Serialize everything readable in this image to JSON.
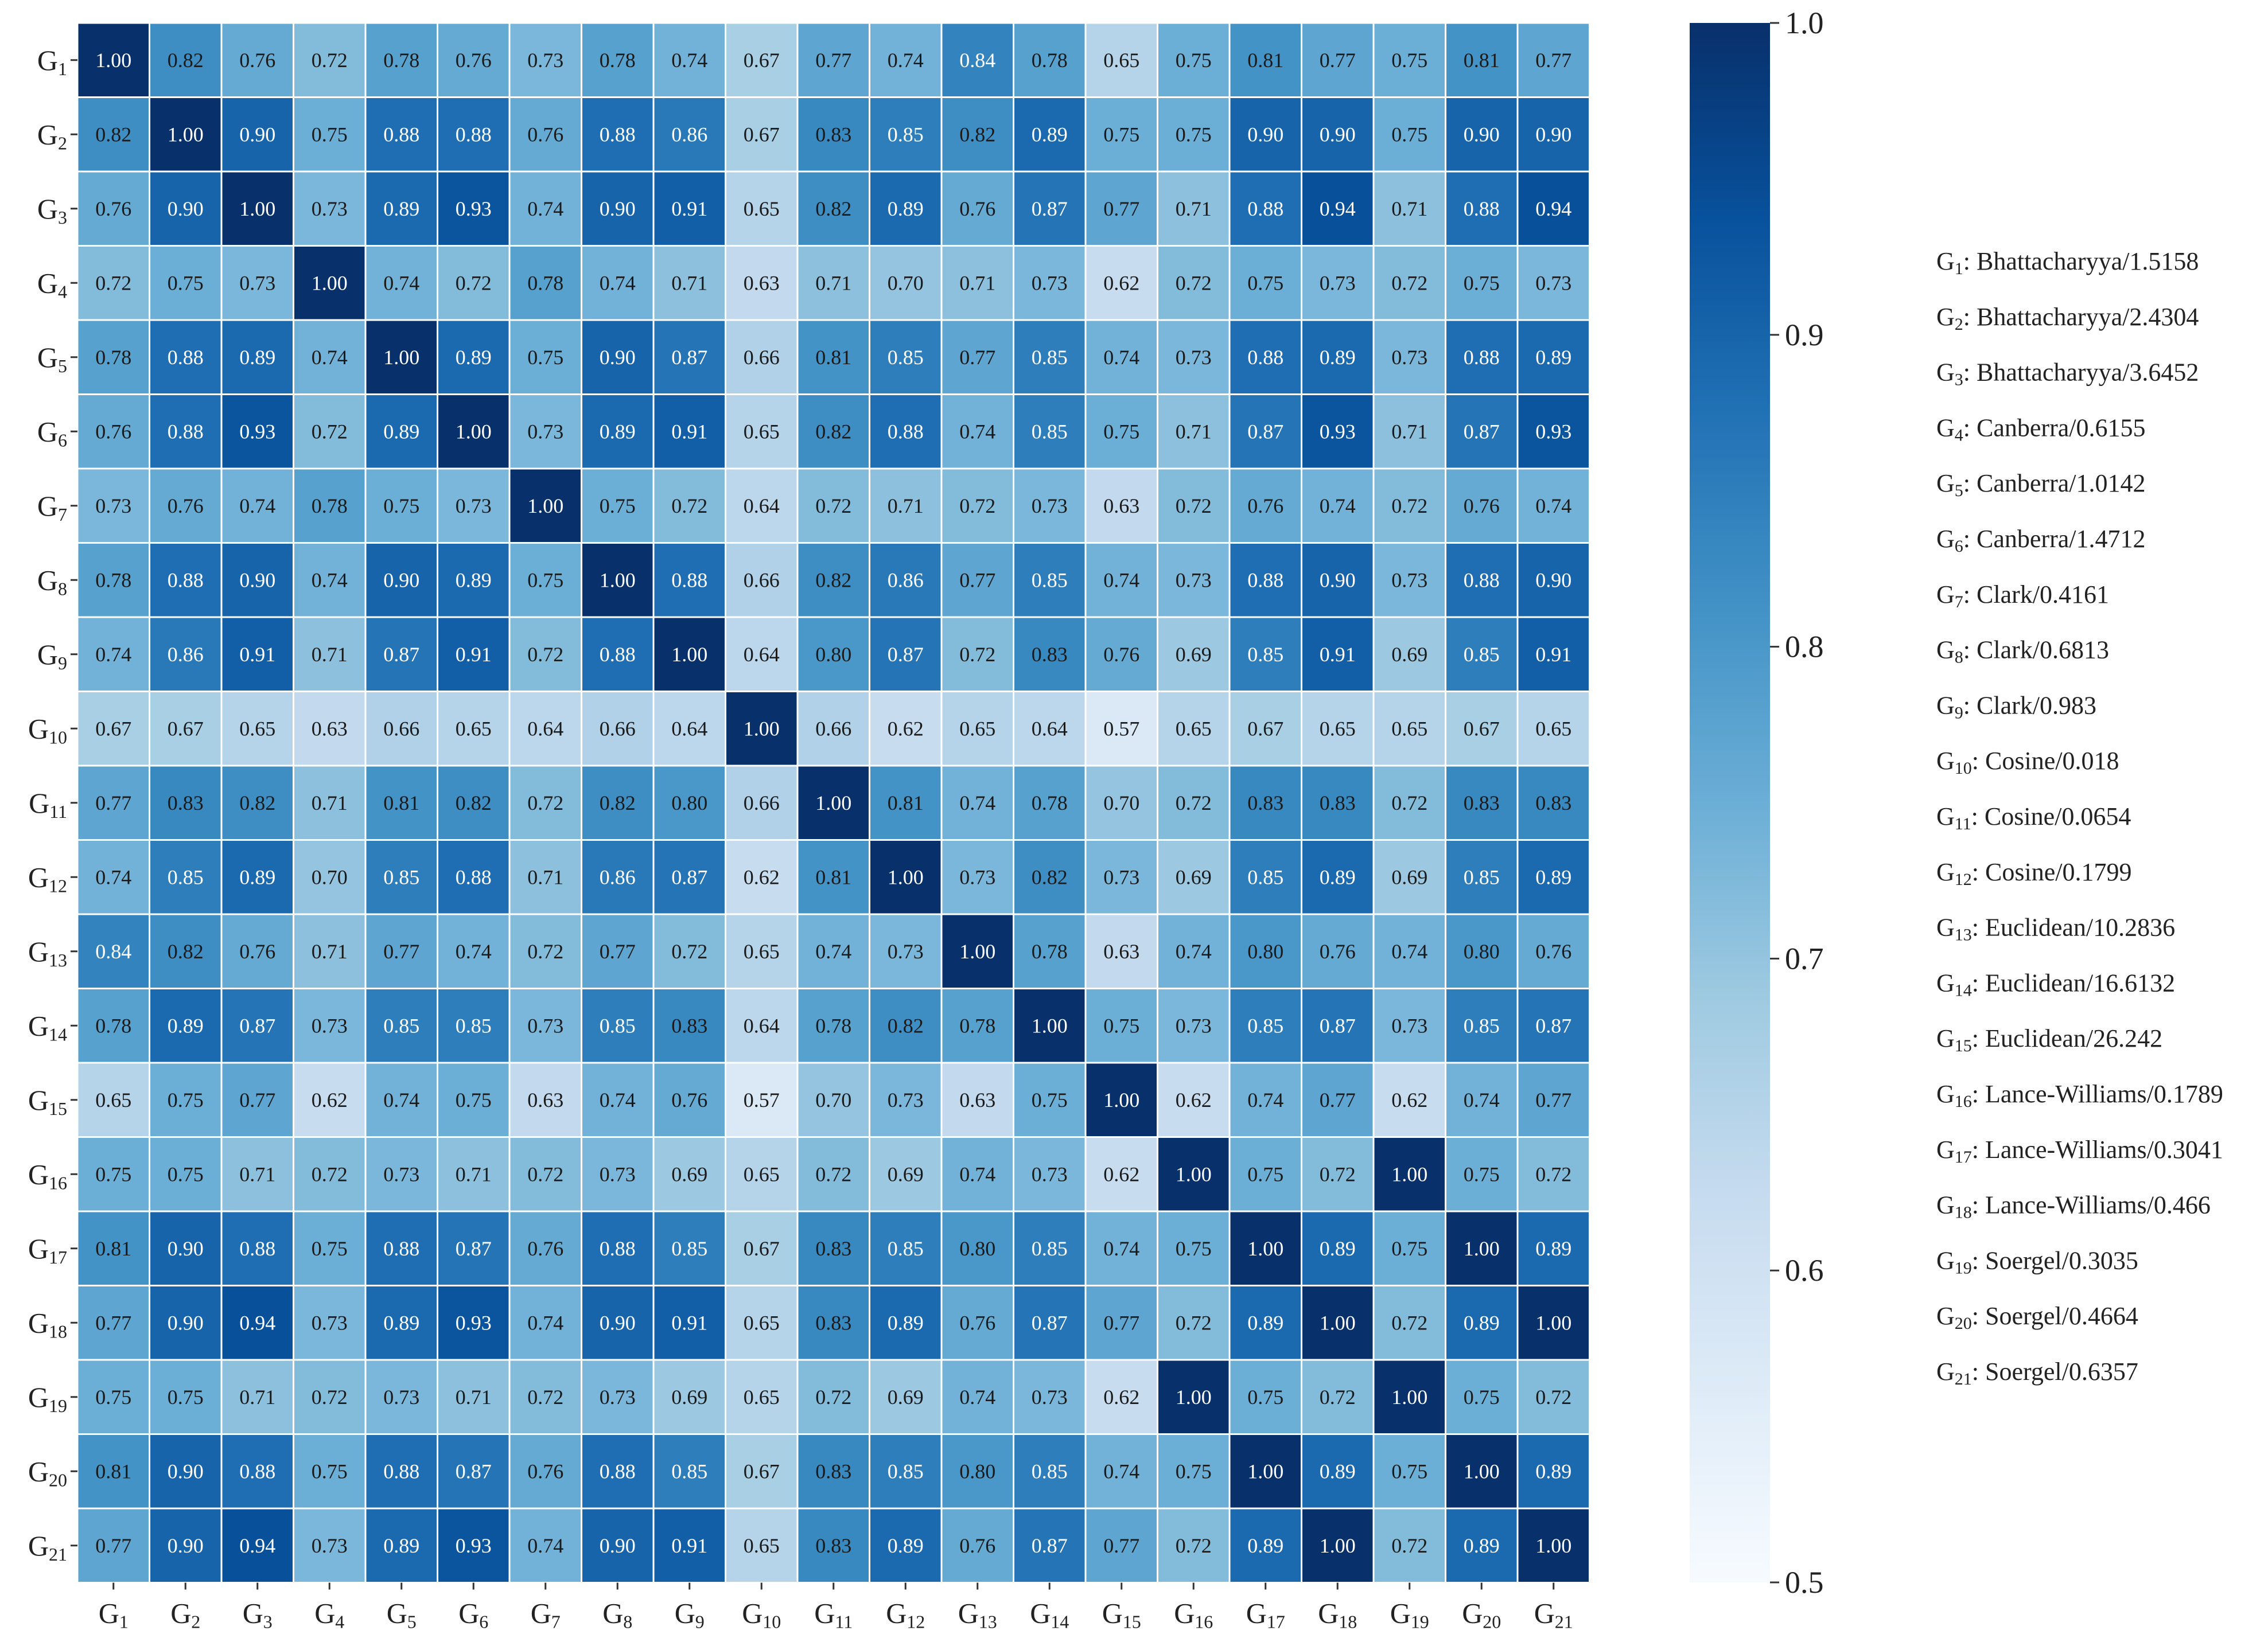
{
  "chart_data": {
    "type": "heatmap",
    "title": "",
    "xlabel": "",
    "ylabel": "",
    "labels": [
      "G1",
      "G2",
      "G3",
      "G4",
      "G5",
      "G6",
      "G7",
      "G8",
      "G9",
      "G10",
      "G11",
      "G12",
      "G13",
      "G14",
      "G15",
      "G16",
      "G17",
      "G18",
      "G19",
      "G20",
      "G21"
    ],
    "matrix": [
      [
        1.0,
        0.82,
        0.76,
        0.72,
        0.78,
        0.76,
        0.73,
        0.78,
        0.74,
        0.67,
        0.77,
        0.74,
        0.84,
        0.78,
        0.65,
        0.75,
        0.81,
        0.77,
        0.75,
        0.81,
        0.77
      ],
      [
        0.82,
        1.0,
        0.9,
        0.75,
        0.88,
        0.88,
        0.76,
        0.88,
        0.86,
        0.67,
        0.83,
        0.85,
        0.82,
        0.89,
        0.75,
        0.75,
        0.9,
        0.9,
        0.75,
        0.9,
        0.9
      ],
      [
        0.76,
        0.9,
        1.0,
        0.73,
        0.89,
        0.93,
        0.74,
        0.9,
        0.91,
        0.65,
        0.82,
        0.89,
        0.76,
        0.87,
        0.77,
        0.71,
        0.88,
        0.94,
        0.71,
        0.88,
        0.94
      ],
      [
        0.72,
        0.75,
        0.73,
        1.0,
        0.74,
        0.72,
        0.78,
        0.74,
        0.71,
        0.63,
        0.71,
        0.7,
        0.71,
        0.73,
        0.62,
        0.72,
        0.75,
        0.73,
        0.72,
        0.75,
        0.73
      ],
      [
        0.78,
        0.88,
        0.89,
        0.74,
        1.0,
        0.89,
        0.75,
        0.9,
        0.87,
        0.66,
        0.81,
        0.85,
        0.77,
        0.85,
        0.74,
        0.73,
        0.88,
        0.89,
        0.73,
        0.88,
        0.89
      ],
      [
        0.76,
        0.88,
        0.93,
        0.72,
        0.89,
        1.0,
        0.73,
        0.89,
        0.91,
        0.65,
        0.82,
        0.88,
        0.74,
        0.85,
        0.75,
        0.71,
        0.87,
        0.93,
        0.71,
        0.87,
        0.93
      ],
      [
        0.73,
        0.76,
        0.74,
        0.78,
        0.75,
        0.73,
        1.0,
        0.75,
        0.72,
        0.64,
        0.72,
        0.71,
        0.72,
        0.73,
        0.63,
        0.72,
        0.76,
        0.74,
        0.72,
        0.76,
        0.74
      ],
      [
        0.78,
        0.88,
        0.9,
        0.74,
        0.9,
        0.89,
        0.75,
        1.0,
        0.88,
        0.66,
        0.82,
        0.86,
        0.77,
        0.85,
        0.74,
        0.73,
        0.88,
        0.9,
        0.73,
        0.88,
        0.9
      ],
      [
        0.74,
        0.86,
        0.91,
        0.71,
        0.87,
        0.91,
        0.72,
        0.88,
        1.0,
        0.64,
        0.8,
        0.87,
        0.72,
        0.83,
        0.76,
        0.69,
        0.85,
        0.91,
        0.69,
        0.85,
        0.91
      ],
      [
        0.67,
        0.67,
        0.65,
        0.63,
        0.66,
        0.65,
        0.64,
        0.66,
        0.64,
        1.0,
        0.66,
        0.62,
        0.65,
        0.64,
        0.57,
        0.65,
        0.67,
        0.65,
        0.65,
        0.67,
        0.65
      ],
      [
        0.77,
        0.83,
        0.82,
        0.71,
        0.81,
        0.82,
        0.72,
        0.82,
        0.8,
        0.66,
        1.0,
        0.81,
        0.74,
        0.78,
        0.7,
        0.72,
        0.83,
        0.83,
        0.72,
        0.83,
        0.83
      ],
      [
        0.74,
        0.85,
        0.89,
        0.7,
        0.85,
        0.88,
        0.71,
        0.86,
        0.87,
        0.62,
        0.81,
        1.0,
        0.73,
        0.82,
        0.73,
        0.69,
        0.85,
        0.89,
        0.69,
        0.85,
        0.89
      ],
      [
        0.84,
        0.82,
        0.76,
        0.71,
        0.77,
        0.74,
        0.72,
        0.77,
        0.72,
        0.65,
        0.74,
        0.73,
        1.0,
        0.78,
        0.63,
        0.74,
        0.8,
        0.76,
        0.74,
        0.8,
        0.76
      ],
      [
        0.78,
        0.89,
        0.87,
        0.73,
        0.85,
        0.85,
        0.73,
        0.85,
        0.83,
        0.64,
        0.78,
        0.82,
        0.78,
        1.0,
        0.75,
        0.73,
        0.85,
        0.87,
        0.73,
        0.85,
        0.87
      ],
      [
        0.65,
        0.75,
        0.77,
        0.62,
        0.74,
        0.75,
        0.63,
        0.74,
        0.76,
        0.57,
        0.7,
        0.73,
        0.63,
        0.75,
        1.0,
        0.62,
        0.74,
        0.77,
        0.62,
        0.74,
        0.77
      ],
      [
        0.75,
        0.75,
        0.71,
        0.72,
        0.73,
        0.71,
        0.72,
        0.73,
        0.69,
        0.65,
        0.72,
        0.69,
        0.74,
        0.73,
        0.62,
        1.0,
        0.75,
        0.72,
        1.0,
        0.75,
        0.72
      ],
      [
        0.81,
        0.9,
        0.88,
        0.75,
        0.88,
        0.87,
        0.76,
        0.88,
        0.85,
        0.67,
        0.83,
        0.85,
        0.8,
        0.85,
        0.74,
        0.75,
        1.0,
        0.89,
        0.75,
        1.0,
        0.89
      ],
      [
        0.77,
        0.9,
        0.94,
        0.73,
        0.89,
        0.93,
        0.74,
        0.9,
        0.91,
        0.65,
        0.83,
        0.89,
        0.76,
        0.87,
        0.77,
        0.72,
        0.89,
        1.0,
        0.72,
        0.89,
        1.0
      ],
      [
        0.75,
        0.75,
        0.71,
        0.72,
        0.73,
        0.71,
        0.72,
        0.73,
        0.69,
        0.65,
        0.72,
        0.69,
        0.74,
        0.73,
        0.62,
        1.0,
        0.75,
        0.72,
        1.0,
        0.75,
        0.72
      ],
      [
        0.81,
        0.9,
        0.88,
        0.75,
        0.88,
        0.87,
        0.76,
        0.88,
        0.85,
        0.67,
        0.83,
        0.85,
        0.8,
        0.85,
        0.74,
        0.75,
        1.0,
        0.89,
        0.75,
        1.0,
        0.89
      ],
      [
        0.77,
        0.9,
        0.94,
        0.73,
        0.89,
        0.93,
        0.74,
        0.9,
        0.91,
        0.65,
        0.83,
        0.89,
        0.76,
        0.87,
        0.77,
        0.72,
        0.89,
        1.0,
        0.72,
        0.89,
        1.0
      ]
    ],
    "colorbar": {
      "min": 0.5,
      "max": 1.0,
      "ticks": [
        0.5,
        0.6,
        0.7,
        0.8,
        0.9,
        1.0
      ],
      "tick_labels": [
        "0.5",
        "0.6",
        "0.7",
        "0.8",
        "0.9",
        "1.0"
      ],
      "colors": [
        "#f7fbff",
        "#deebf7",
        "#c6dbef",
        "#9ecae1",
        "#6baed6",
        "#4292c6",
        "#2171b5",
        "#08519c",
        "#08306b"
      ]
    },
    "legend": [
      {
        "label": "G1",
        "text": "Bhattacharyya/1.5158"
      },
      {
        "label": "G2",
        "text": "Bhattacharyya/2.4304"
      },
      {
        "label": "G3",
        "text": "Bhattacharyya/3.6452"
      },
      {
        "label": "G4",
        "text": "Canberra/0.6155"
      },
      {
        "label": "G5",
        "text": "Canberra/1.0142"
      },
      {
        "label": "G6",
        "text": "Canberra/1.4712"
      },
      {
        "label": "G7",
        "text": "Clark/0.4161"
      },
      {
        "label": "G8",
        "text": "Clark/0.6813"
      },
      {
        "label": "G9",
        "text": "Clark/0.983"
      },
      {
        "label": "G10",
        "text": "Cosine/0.018"
      },
      {
        "label": "G11",
        "text": "Cosine/0.0654"
      },
      {
        "label": "G12",
        "text": "Cosine/0.1799"
      },
      {
        "label": "G13",
        "text": "Euclidean/10.2836"
      },
      {
        "label": "G14",
        "text": "Euclidean/16.6132"
      },
      {
        "label": "G15",
        "text": "Euclidean/26.242"
      },
      {
        "label": "G16",
        "text": "Lance-Williams/0.1789"
      },
      {
        "label": "G17",
        "text": "Lance-Williams/0.3041"
      },
      {
        "label": "G18",
        "text": "Lance-Williams/0.466"
      },
      {
        "label": "G19",
        "text": "Soergel/0.3035"
      },
      {
        "label": "G20",
        "text": "Soergel/0.4664"
      },
      {
        "label": "G21",
        "text": "Soergel/0.6357"
      }
    ]
  }
}
